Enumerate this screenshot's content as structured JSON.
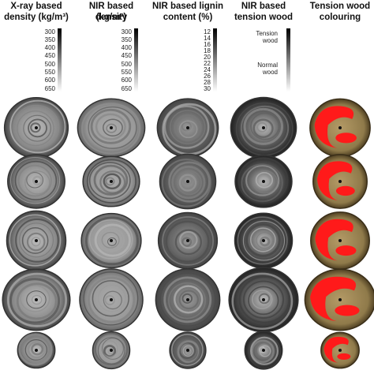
{
  "columns": [
    {
      "header": [
        "X-ray based",
        "density (kg/m³)"
      ],
      "scale": [
        300,
        350,
        400,
        450,
        500,
        550,
        600,
        650
      ]
    },
    {
      "header": [
        "NIR based density",
        "(kg/m³)"
      ],
      "scale": [
        300,
        350,
        400,
        450,
        500,
        550,
        600,
        650
      ]
    },
    {
      "header": [
        "NIR based lignin",
        "content (%)"
      ],
      "scale": [
        12,
        14,
        16,
        18,
        20,
        22,
        24,
        26,
        28,
        30
      ]
    },
    {
      "header": [
        "NIR based",
        "tension wood"
      ],
      "scale": [
        "Tension wood",
        "Normal wood"
      ]
    },
    {
      "header": [
        "Tension wood",
        "colouring"
      ]
    }
  ]
}
